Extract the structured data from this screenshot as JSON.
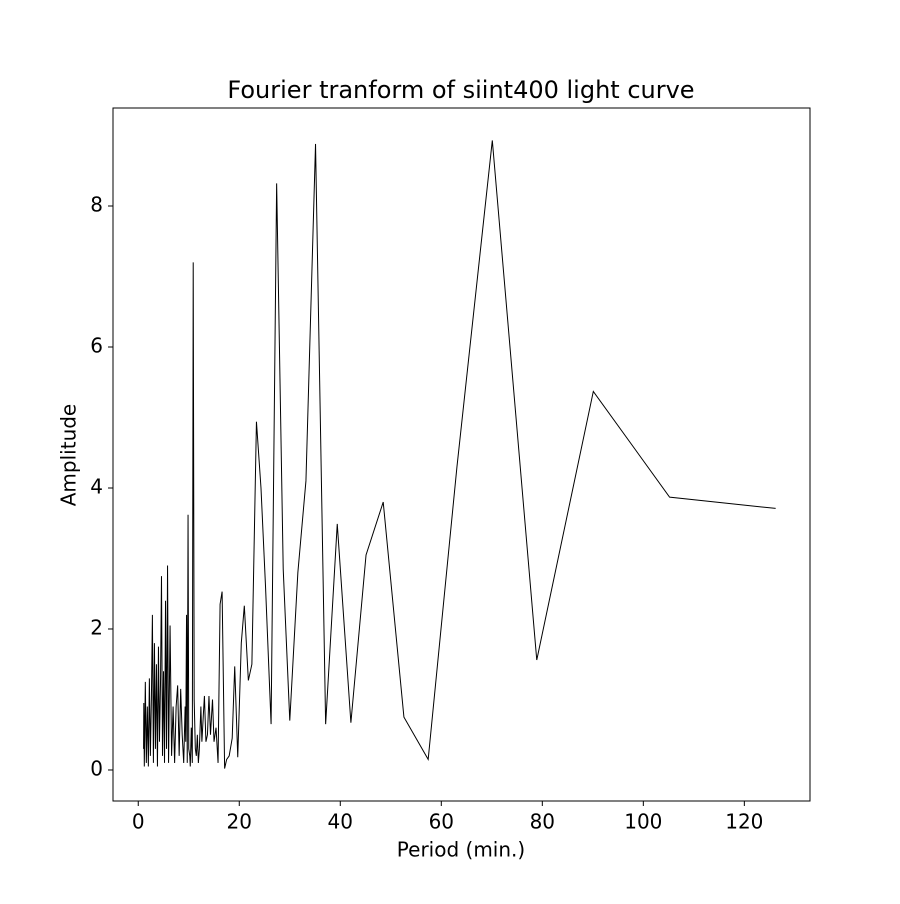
{
  "chart_data": {
    "type": "line",
    "title": "Fourier tranform of siint400 light curve",
    "x_label": "Period (min.)",
    "y_label": "Amplitude",
    "xlim": [
      -5,
      133
    ],
    "ylim": [
      -0.44,
      9.39
    ],
    "xticks": [
      0,
      20,
      40,
      60,
      80,
      100,
      120
    ],
    "yticks": [
      0,
      2,
      4,
      6,
      8
    ],
    "series": [
      {
        "color": "#000000",
        "x": [
          1.05,
          1.1,
          1.2,
          1.4,
          1.6,
          1.8,
          2.0,
          2.2,
          2.4,
          2.6,
          2.8,
          3.0,
          3.2,
          3.4,
          3.6,
          3.8,
          4.0,
          4.2,
          4.4,
          4.6,
          4.8,
          5.0,
          5.2,
          5.4,
          5.6,
          5.8,
          6.0,
          6.3,
          6.6,
          6.9,
          7.2,
          7.5,
          7.8,
          8.1,
          8.4,
          8.7,
          9.0,
          9.28,
          9.4,
          9.56,
          9.7,
          9.86,
          10.0,
          10.2,
          10.3,
          10.5,
          10.7,
          10.88,
          11.07,
          11.3,
          11.5,
          11.7,
          11.9,
          12.1,
          12.4,
          12.6,
          12.9,
          13.1,
          13.4,
          13.7,
          14.0,
          14.3,
          14.7,
          15.0,
          15.4,
          15.8,
          16.2,
          16.6,
          17.1,
          17.5,
          18.0,
          18.6,
          19.1,
          19.7,
          20.4,
          21.0,
          21.8,
          22.5,
          23.4,
          24.3,
          25.2,
          26.3,
          27.4,
          28.7,
          30.0,
          31.6,
          33.2,
          35.1,
          37.1,
          39.4,
          42.1,
          45.1,
          48.5,
          52.6,
          57.4,
          63.1,
          70.1,
          78.9,
          90.1,
          105.2,
          126.2
        ],
        "values": [
          0.3,
          0.95,
          0.05,
          1.25,
          0.1,
          0.9,
          0.05,
          1.3,
          0.2,
          1.0,
          2.2,
          0.1,
          1.8,
          0.3,
          1.5,
          0.05,
          1.75,
          0.4,
          1.2,
          2.75,
          0.2,
          1.4,
          0.1,
          2.4,
          0.3,
          2.9,
          0.1,
          2.05,
          0.2,
          0.9,
          0.1,
          0.9,
          1.2,
          0.2,
          1.15,
          0.5,
          0.1,
          0.9,
          0.4,
          2.2,
          0.1,
          3.62,
          0.3,
          0.2,
          0.05,
          0.6,
          0.1,
          7.2,
          1.0,
          0.3,
          0.2,
          0.5,
          0.1,
          0.3,
          0.9,
          0.4,
          0.8,
          1.05,
          0.4,
          0.5,
          1.05,
          0.5,
          1.0,
          0.4,
          0.6,
          0.1,
          2.35,
          2.53,
          0.02,
          0.15,
          0.2,
          0.45,
          1.47,
          0.18,
          1.8,
          2.33,
          1.27,
          1.5,
          4.94,
          4.0,
          2.6,
          0.65,
          8.32,
          2.85,
          0.7,
          2.8,
          4.1,
          8.88,
          0.65,
          3.49,
          0.67,
          3.05,
          3.8,
          0.75,
          0.15,
          4.3,
          8.93,
          1.56,
          5.37,
          3.87,
          3.71
        ]
      }
    ]
  }
}
